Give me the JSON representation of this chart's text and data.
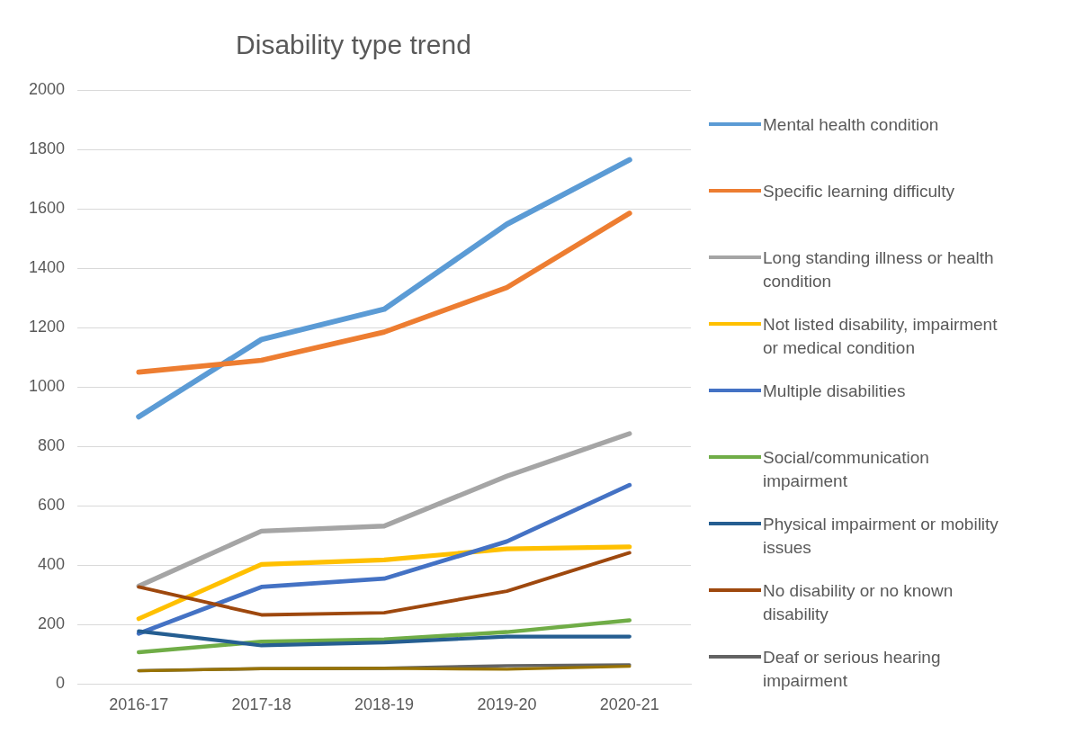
{
  "chart_data": {
    "type": "line",
    "title": "Disability type trend",
    "categories": [
      "2016-17",
      "2017-18",
      "2018-19",
      "2019-20",
      "2020-21"
    ],
    "series": [
      {
        "name": "Mental health condition",
        "color": "#5b9bd5",
        "values": [
          900,
          1160,
          1262,
          1548,
          1765
        ]
      },
      {
        "name": "Specific learning difficulty",
        "color": "#ed7d31",
        "values": [
          1050,
          1090,
          1185,
          1335,
          1585
        ]
      },
      {
        "name": "Long standing illness or health condition",
        "color": "#a5a5a5",
        "values": [
          330,
          515,
          532,
          700,
          843
        ]
      },
      {
        "name": "Not listed disability, impairment or medical condition",
        "color": "#ffc000",
        "values": [
          220,
          403,
          418,
          455,
          462
        ]
      },
      {
        "name": "Multiple disabilities",
        "color": "#4472c4",
        "values": [
          170,
          327,
          355,
          480,
          670
        ]
      },
      {
        "name": "Social/communication impairment",
        "color": "#70ad47",
        "values": [
          107,
          143,
          150,
          175,
          215
        ]
      },
      {
        "name": "Physical impairment or mobility issues",
        "color": "#255e91",
        "values": [
          178,
          130,
          140,
          160,
          160
        ]
      },
      {
        "name": "No disability or no known disability",
        "color": "#9e480e",
        "values": [
          327,
          233,
          240,
          313,
          442
        ]
      },
      {
        "name": "Deaf or serious hearing impairment",
        "color": "#636363",
        "values": [
          45,
          52,
          53,
          62,
          65
        ]
      },
      {
        "color": "#997300",
        "values": [
          45,
          52,
          53,
          50,
          60
        ]
      }
    ],
    "ylim": [
      0,
      2000
    ],
    "yticks": [
      0,
      200,
      400,
      600,
      800,
      1000,
      1200,
      1400,
      1600,
      1800,
      2000
    ],
    "grid": "y",
    "legend": "right",
    "marker": "none",
    "line_style": "solid"
  }
}
